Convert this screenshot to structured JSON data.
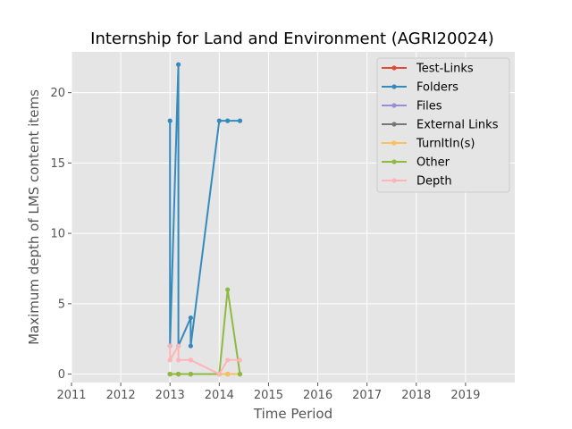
{
  "chart_data": {
    "type": "line",
    "title": "Internship for Land and Environment (AGRI20024)",
    "xlabel": "Time Period",
    "ylabel": "Maximum depth of LMS content items",
    "xlim": [
      2011,
      2020
    ],
    "ylim": [
      -0.6,
      22.9
    ],
    "x_ticks": [
      "2011",
      "2012",
      "2013",
      "2014",
      "2015",
      "2016",
      "2017",
      "2018",
      "2019"
    ],
    "y_ticks": [
      "0",
      "5",
      "10",
      "15",
      "20"
    ],
    "grid": true,
    "legend_position": "upper-right",
    "series": [
      {
        "name": "Test-Links",
        "color": "#E24A33",
        "x": [
          2013.0,
          2013.0,
          2013.17,
          2013.17,
          2013.42,
          2013.42,
          2014.0,
          2014.17,
          2014.42
        ],
        "y": [
          0,
          0,
          0,
          0,
          0,
          0,
          0,
          0,
          0
        ]
      },
      {
        "name": "Folders",
        "color": "#348ABD",
        "x": [
          2013.0,
          2013.0,
          2013.17,
          2013.17,
          2013.42,
          2013.42,
          2014.0,
          2014.17,
          2014.42
        ],
        "y": [
          18,
          2,
          22,
          2,
          4,
          2,
          18,
          18,
          18
        ]
      },
      {
        "name": "Files",
        "color": "#988ED5",
        "x": [
          2013.0,
          2013.0,
          2013.17,
          2013.17,
          2013.42,
          2013.42,
          2014.0,
          2014.17,
          2014.42
        ],
        "y": [
          0,
          0,
          0,
          0,
          0,
          0,
          0,
          0,
          0
        ]
      },
      {
        "name": "External Links",
        "color": "#777777",
        "x": [
          2013.0,
          2013.0,
          2013.17,
          2013.17,
          2013.42,
          2013.42,
          2014.0,
          2014.17,
          2014.42
        ],
        "y": [
          0,
          0,
          0,
          0,
          0,
          0,
          0,
          0,
          0
        ]
      },
      {
        "name": "TurnItIn(s)",
        "color": "#FBC15E",
        "x": [
          2013.0,
          2013.0,
          2013.17,
          2013.17,
          2013.42,
          2013.42,
          2014.0,
          2014.17,
          2014.42
        ],
        "y": [
          0,
          0,
          0,
          0,
          0,
          0,
          0,
          0,
          0
        ]
      },
      {
        "name": "Other",
        "color": "#8EBA42",
        "x": [
          2013.0,
          2013.0,
          2013.17,
          2013.17,
          2013.42,
          2013.42,
          2014.0,
          2014.17,
          2014.42
        ],
        "y": [
          0,
          0,
          0,
          0,
          0,
          0,
          0,
          6,
          0
        ]
      },
      {
        "name": "Depth",
        "color": "#FFB5B8",
        "x": [
          2013.0,
          2013.0,
          2013.17,
          2013.17,
          2013.42,
          2013.42,
          2014.0,
          2014.17,
          2014.42
        ],
        "y": [
          2,
          1,
          2,
          1,
          1,
          1,
          0,
          1,
          1
        ]
      }
    ]
  }
}
